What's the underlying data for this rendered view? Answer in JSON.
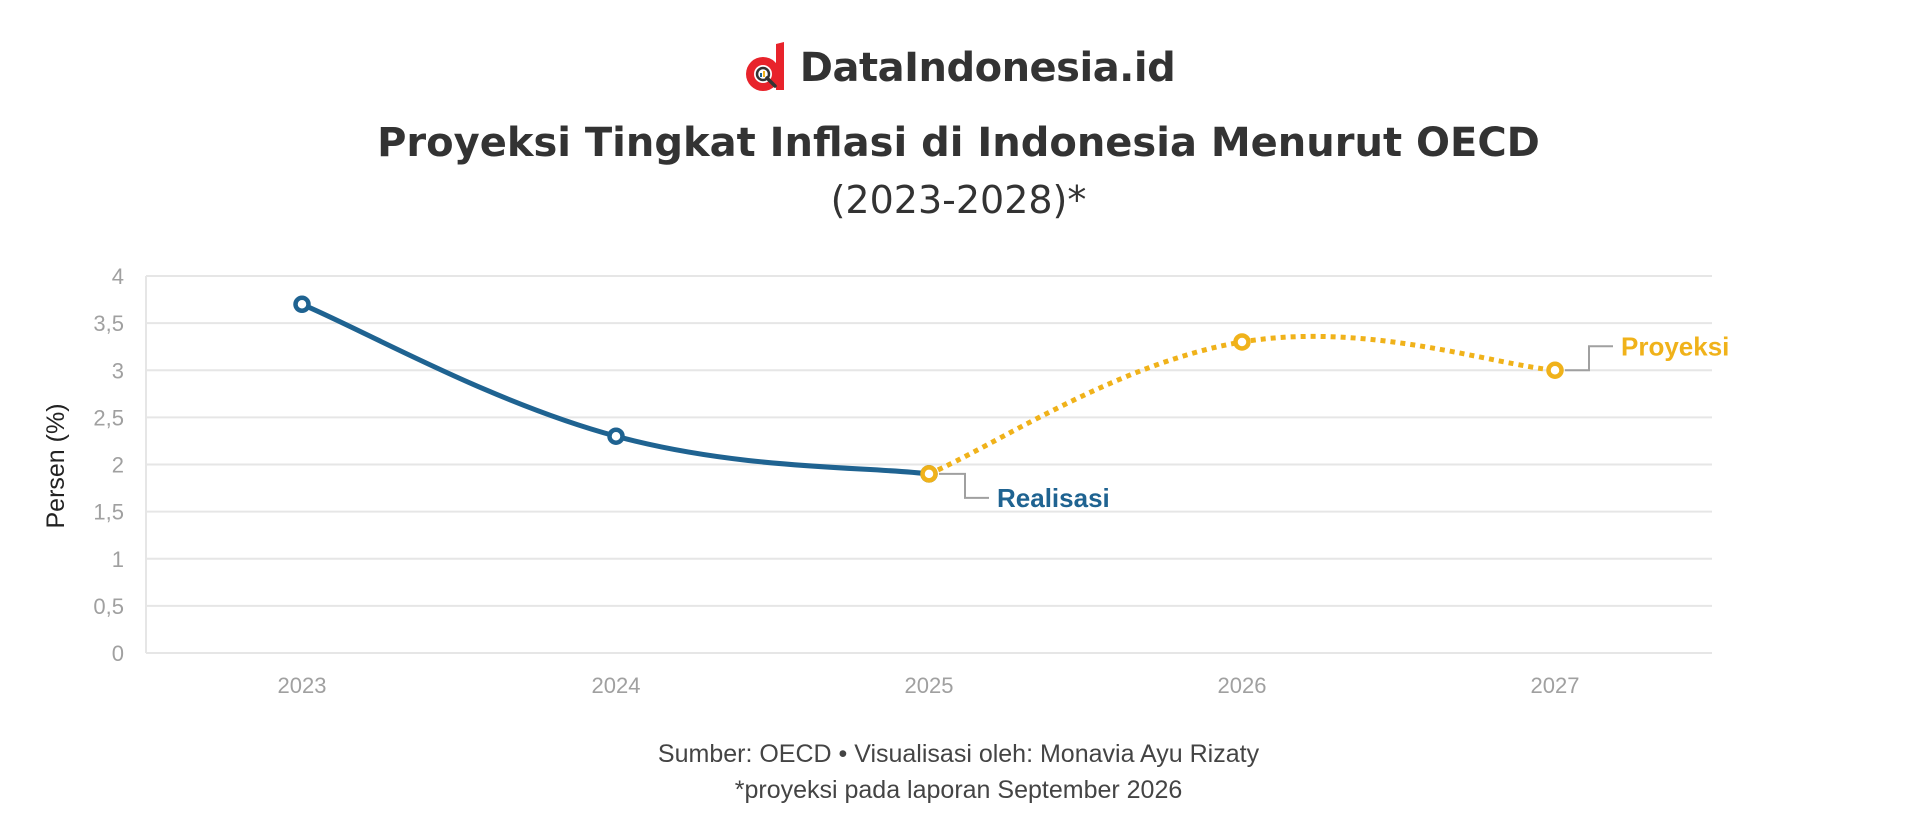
{
  "brand": {
    "name": "DataIndonesia.id",
    "logo_letter": "d",
    "logo_color": "#e8232b"
  },
  "title": "Proyeksi Tingkat Inflasi di Indonesia Menurut OECD",
  "subtitle": "(2023-2028)*",
  "footer": {
    "source": "Sumber: OECD • Visualisasi oleh: Monavia Ayu Rizaty",
    "note": "*proyeksi pada laporan September 2026"
  },
  "colors": {
    "actual": "#1f6391",
    "projection": "#f0b21a",
    "grid": "#e6e6e6",
    "tick": "#a0a0a0",
    "connector": "#a0a0a0"
  },
  "chart_data": {
    "type": "line",
    "ylabel": "Persen (%)",
    "xlabel": "",
    "ylim": [
      0,
      4
    ],
    "yticks": [
      "0",
      "0,5",
      "1",
      "1,5",
      "2",
      "2,5",
      "3",
      "3,5",
      "4"
    ],
    "grid": true,
    "categories": [
      "2023",
      "2024",
      "2025",
      "2026",
      "2027"
    ],
    "series": [
      {
        "name": "Realisasi",
        "style": "solid",
        "x": [
          "2023",
          "2024",
          "2025"
        ],
        "values": [
          3.7,
          2.3,
          1.9
        ]
      },
      {
        "name": "Proyeksi",
        "style": "dotted",
        "x": [
          "2025",
          "2026",
          "2027"
        ],
        "values": [
          1.9,
          3.3,
          3.0
        ]
      }
    ]
  }
}
